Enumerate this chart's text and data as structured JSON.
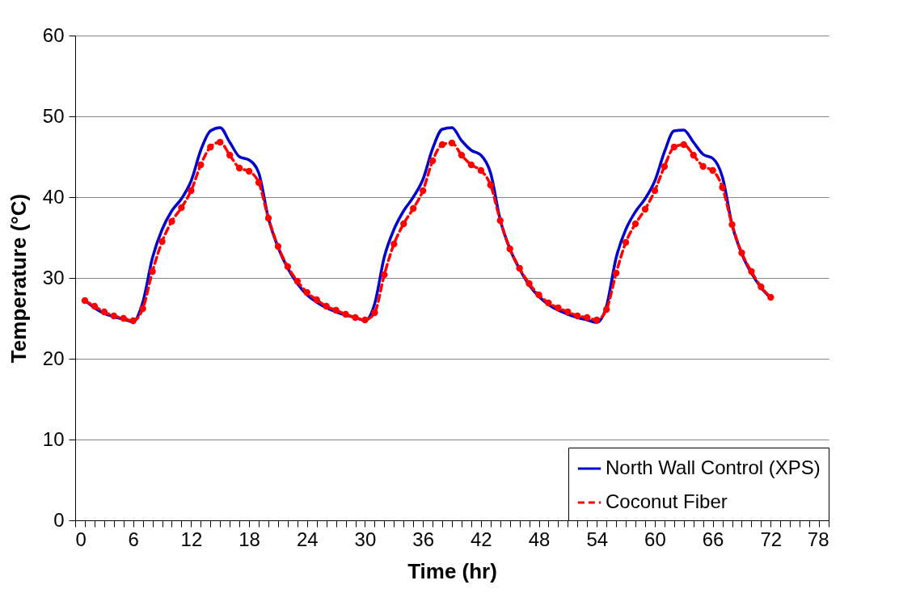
{
  "chart_data": {
    "type": "line",
    "xlabel": "Time (hr)",
    "ylabel": "Temperature (°C)",
    "x": [
      1,
      2,
      3,
      4,
      5,
      6,
      7,
      8,
      9,
      10,
      11,
      12,
      13,
      14,
      15,
      16,
      17,
      18,
      19,
      20,
      21,
      22,
      23,
      24,
      25,
      26,
      27,
      28,
      29,
      30,
      31,
      32,
      33,
      34,
      35,
      36,
      37,
      38,
      39,
      40,
      41,
      42,
      43,
      44,
      45,
      46,
      47,
      48,
      49,
      50,
      51,
      52,
      53,
      54,
      55,
      56,
      57,
      58,
      59,
      60,
      61,
      62,
      63,
      64,
      65,
      66,
      67,
      68,
      69,
      70,
      71,
      72
    ],
    "series": [
      {
        "name": "North Wall Control (XPS)",
        "color": "#0000cc",
        "line_style": "solid",
        "marker": "none",
        "values": [
          27.2,
          26.3,
          25.6,
          25.2,
          24.9,
          24.6,
          27.0,
          32.5,
          36.0,
          38.3,
          39.8,
          42.0,
          45.8,
          48.2,
          48.6,
          46.8,
          45.0,
          44.6,
          43.0,
          37.4,
          33.8,
          31.2,
          29.3,
          27.9,
          27.0,
          26.3,
          25.8,
          25.4,
          25.1,
          24.7,
          26.8,
          32.6,
          36.0,
          38.3,
          40.0,
          42.2,
          46.0,
          48.4,
          48.6,
          47.0,
          45.8,
          45.2,
          43.0,
          37.2,
          33.6,
          31.1,
          29.1,
          27.7,
          26.7,
          26.0,
          25.5,
          25.1,
          24.8,
          24.5,
          26.5,
          32.5,
          36.0,
          38.2,
          39.8,
          42.0,
          45.6,
          48.2,
          48.3,
          46.8,
          45.3,
          44.8,
          42.5,
          36.6,
          33.0,
          30.6,
          28.8,
          27.5
        ]
      },
      {
        "name": "Coconut Fiber",
        "color": "#ff0000",
        "line_style": "dashed",
        "marker": "circle",
        "values": [
          27.2,
          26.5,
          25.8,
          25.3,
          25.0,
          24.7,
          26.2,
          30.8,
          34.5,
          37.0,
          38.7,
          40.8,
          44.0,
          46.2,
          46.8,
          45.2,
          43.6,
          43.2,
          41.8,
          37.4,
          33.9,
          31.4,
          29.6,
          28.2,
          27.3,
          26.5,
          26.0,
          25.5,
          25.1,
          24.8,
          25.7,
          30.4,
          34.2,
          36.7,
          38.6,
          40.8,
          44.5,
          46.5,
          46.7,
          45.2,
          44.0,
          43.3,
          41.5,
          37.1,
          33.6,
          31.2,
          29.3,
          27.9,
          26.9,
          26.3,
          25.8,
          25.3,
          25.1,
          24.8,
          26.1,
          30.6,
          34.4,
          36.7,
          38.5,
          40.8,
          43.8,
          46.2,
          46.5,
          45.2,
          43.8,
          43.3,
          41.2,
          36.6,
          33.1,
          30.8,
          28.9,
          27.6
        ]
      }
    ],
    "xlim": [
      0,
      78
    ],
    "xticks": [
      0,
      {
        "value": 1,
        "label": null
      },
      {
        "value": 2,
        "label": null
      },
      {
        "value": 3,
        "label": null
      },
      {
        "value": 4,
        "label": null
      },
      {
        "value": 5,
        "label": null
      },
      6,
      {
        "value": 7,
        "label": null
      },
      {
        "value": 8,
        "label": null
      },
      {
        "value": 9,
        "label": null
      },
      {
        "value": 10,
        "label": null
      },
      {
        "value": 11,
        "label": null
      },
      12,
      {
        "value": 13,
        "label": null
      },
      {
        "value": 14,
        "label": null
      },
      {
        "value": 15,
        "label": null
      },
      {
        "value": 16,
        "label": null
      },
      {
        "value": 17,
        "label": null
      },
      18,
      {
        "value": 19,
        "label": null
      },
      {
        "value": 20,
        "label": null
      },
      {
        "value": 21,
        "label": null
      },
      {
        "value": 22,
        "label": null
      },
      {
        "value": 23,
        "label": null
      },
      24,
      {
        "value": 25,
        "label": null
      },
      {
        "value": 26,
        "label": null
      },
      {
        "value": 27,
        "label": null
      },
      {
        "value": 28,
        "label": null
      },
      {
        "value": 29,
        "label": null
      },
      30,
      {
        "value": 31,
        "label": null
      },
      {
        "value": 32,
        "label": null
      },
      {
        "value": 33,
        "label": null
      },
      {
        "value": 34,
        "label": null
      },
      {
        "value": 35,
        "label": null
      },
      36,
      {
        "value": 37,
        "label": null
      },
      {
        "value": 38,
        "label": null
      },
      {
        "value": 39,
        "label": null
      },
      {
        "value": 40,
        "label": null
      },
      {
        "value": 41,
        "label": null
      },
      42,
      {
        "value": 43,
        "label": null
      },
      {
        "value": 44,
        "label": null
      },
      {
        "value": 45,
        "label": null
      },
      {
        "value": 46,
        "label": null
      },
      {
        "value": 47,
        "label": null
      },
      48,
      {
        "value": 49,
        "label": null
      },
      {
        "value": 50,
        "label": null
      },
      {
        "value": 51,
        "label": null
      },
      {
        "value": 52,
        "label": null
      },
      {
        "value": 53,
        "label": null
      },
      54,
      {
        "value": 55,
        "label": null
      },
      {
        "value": 56,
        "label": null
      },
      {
        "value": 57,
        "label": null
      },
      {
        "value": 58,
        "label": null
      },
      {
        "value": 59,
        "label": null
      },
      60,
      {
        "value": 61,
        "label": null
      },
      {
        "value": 62,
        "label": null
      },
      {
        "value": 63,
        "label": null
      },
      {
        "value": 64,
        "label": null
      },
      {
        "value": 65,
        "label": null
      },
      66,
      {
        "value": 67,
        "label": null
      },
      {
        "value": 68,
        "label": null
      },
      {
        "value": 69,
        "label": null
      },
      {
        "value": 70,
        "label": null
      },
      {
        "value": 71,
        "label": null
      },
      72,
      {
        "value": 73,
        "label": null
      },
      {
        "value": 74,
        "label": null
      },
      {
        "value": 75,
        "label": null
      },
      {
        "value": 76,
        "label": null
      },
      {
        "value": 77,
        "label": null
      },
      78
    ],
    "ylim": [
      0,
      60
    ],
    "yticks": [
      0,
      10,
      20,
      30,
      40,
      50,
      60
    ],
    "grid": "y",
    "legend": "bottom right"
  }
}
